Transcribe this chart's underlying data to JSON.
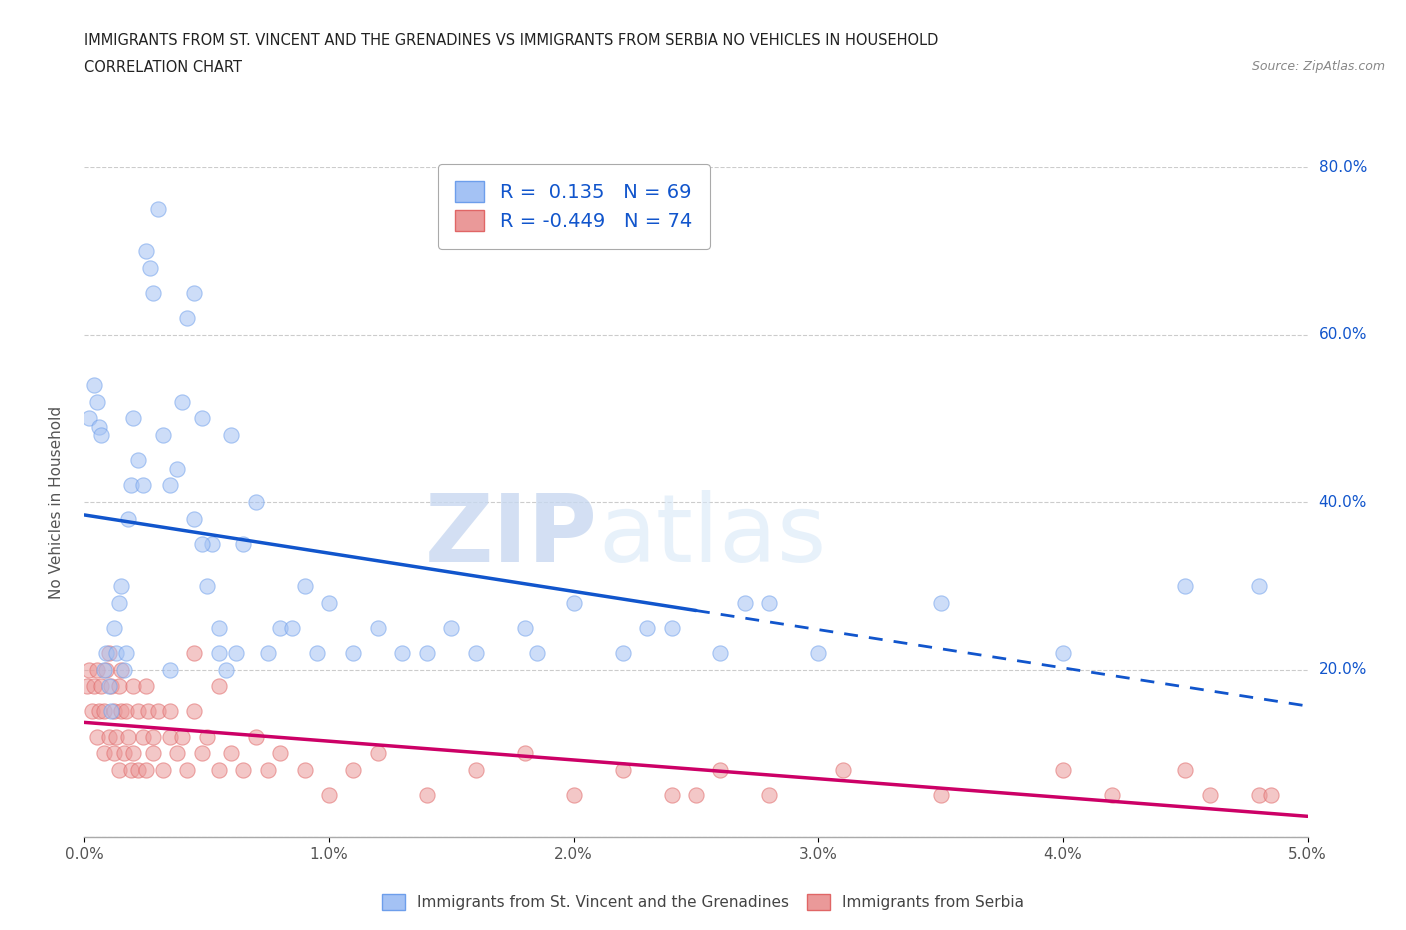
{
  "title_line1": "IMMIGRANTS FROM ST. VINCENT AND THE GRENADINES VS IMMIGRANTS FROM SERBIA NO VEHICLES IN HOUSEHOLD",
  "title_line2": "CORRELATION CHART",
  "source": "Source: ZipAtlas.com",
  "ylabel": "No Vehicles in Household",
  "xlim": [
    0.0,
    5.0
  ],
  "ylim": [
    0.0,
    80.0
  ],
  "xtick_vals": [
    0.0,
    1.0,
    2.0,
    3.0,
    4.0,
    5.0
  ],
  "ytick_vals": [
    0.0,
    20.0,
    40.0,
    60.0,
    80.0
  ],
  "xtick_labels": [
    "0.0%",
    "1.0%",
    "2.0%",
    "3.0%",
    "4.0%",
    "5.0%"
  ],
  "ytick_labels": [
    "0.0%",
    "20.0%",
    "40.0%",
    "60.0%",
    "80.0%"
  ],
  "blue_color": "#a4c2f4",
  "blue_edge_color": "#6d9eeb",
  "pink_color": "#ea9999",
  "pink_edge_color": "#e06666",
  "blue_line_color": "#1155cc",
  "pink_line_color": "#cc0066",
  "R_blue": 0.135,
  "N_blue": 69,
  "R_pink": -0.449,
  "N_pink": 74,
  "legend_label_blue": "Immigrants from St. Vincent and the Grenadines",
  "legend_label_pink": "Immigrants from Serbia",
  "watermark_zip": "ZIP",
  "watermark_atlas": "atlas",
  "background_color": "#ffffff",
  "blue_scatter_x": [
    0.02,
    0.04,
    0.05,
    0.06,
    0.07,
    0.08,
    0.09,
    0.1,
    0.11,
    0.12,
    0.13,
    0.14,
    0.15,
    0.16,
    0.17,
    0.18,
    0.19,
    0.2,
    0.22,
    0.24,
    0.25,
    0.27,
    0.28,
    0.3,
    0.32,
    0.35,
    0.38,
    0.4,
    0.42,
    0.45,
    0.48,
    0.5,
    0.52,
    0.55,
    0.58,
    0.6,
    0.65,
    0.7,
    0.75,
    0.8,
    0.85,
    0.9,
    0.95,
    1.0,
    1.1,
    1.2,
    1.3,
    1.4,
    1.5,
    1.6,
    1.8,
    2.0,
    2.2,
    2.4,
    2.6,
    2.8,
    3.0,
    3.5,
    4.0,
    4.5,
    4.8,
    1.85,
    2.3,
    2.7,
    0.45,
    0.55,
    0.48,
    0.62,
    0.35
  ],
  "blue_scatter_y": [
    50.0,
    54.0,
    52.0,
    49.0,
    48.0,
    20.0,
    22.0,
    18.0,
    15.0,
    25.0,
    22.0,
    28.0,
    30.0,
    20.0,
    22.0,
    38.0,
    42.0,
    50.0,
    45.0,
    42.0,
    70.0,
    68.0,
    65.0,
    75.0,
    48.0,
    42.0,
    44.0,
    52.0,
    62.0,
    65.0,
    50.0,
    30.0,
    35.0,
    22.0,
    20.0,
    48.0,
    35.0,
    40.0,
    22.0,
    25.0,
    25.0,
    30.0,
    22.0,
    28.0,
    22.0,
    25.0,
    22.0,
    22.0,
    25.0,
    22.0,
    25.0,
    28.0,
    22.0,
    25.0,
    22.0,
    28.0,
    22.0,
    28.0,
    22.0,
    30.0,
    30.0,
    22.0,
    25.0,
    28.0,
    38.0,
    25.0,
    35.0,
    22.0,
    20.0
  ],
  "pink_scatter_x": [
    0.01,
    0.02,
    0.03,
    0.04,
    0.05,
    0.05,
    0.06,
    0.07,
    0.08,
    0.08,
    0.09,
    0.1,
    0.1,
    0.11,
    0.12,
    0.12,
    0.13,
    0.14,
    0.14,
    0.15,
    0.15,
    0.16,
    0.17,
    0.18,
    0.19,
    0.2,
    0.2,
    0.22,
    0.22,
    0.24,
    0.25,
    0.25,
    0.26,
    0.28,
    0.28,
    0.3,
    0.32,
    0.35,
    0.35,
    0.38,
    0.4,
    0.42,
    0.45,
    0.48,
    0.5,
    0.55,
    0.6,
    0.65,
    0.7,
    0.75,
    0.8,
    0.9,
    1.0,
    1.1,
    1.2,
    1.4,
    1.6,
    1.8,
    2.0,
    2.2,
    2.5,
    2.8,
    3.1,
    3.5,
    4.0,
    4.2,
    4.5,
    4.6,
    4.8,
    4.85,
    2.4,
    2.6,
    0.45,
    0.55
  ],
  "pink_scatter_y": [
    18.0,
    20.0,
    15.0,
    18.0,
    12.0,
    20.0,
    15.0,
    18.0,
    10.0,
    15.0,
    20.0,
    12.0,
    22.0,
    18.0,
    10.0,
    15.0,
    12.0,
    18.0,
    8.0,
    15.0,
    20.0,
    10.0,
    15.0,
    12.0,
    8.0,
    18.0,
    10.0,
    15.0,
    8.0,
    12.0,
    18.0,
    8.0,
    15.0,
    10.0,
    12.0,
    15.0,
    8.0,
    12.0,
    15.0,
    10.0,
    12.0,
    8.0,
    15.0,
    10.0,
    12.0,
    8.0,
    10.0,
    8.0,
    12.0,
    8.0,
    10.0,
    8.0,
    5.0,
    8.0,
    10.0,
    5.0,
    8.0,
    10.0,
    5.0,
    8.0,
    5.0,
    5.0,
    8.0,
    5.0,
    8.0,
    5.0,
    8.0,
    5.0,
    5.0,
    5.0,
    5.0,
    8.0,
    22.0,
    18.0
  ]
}
